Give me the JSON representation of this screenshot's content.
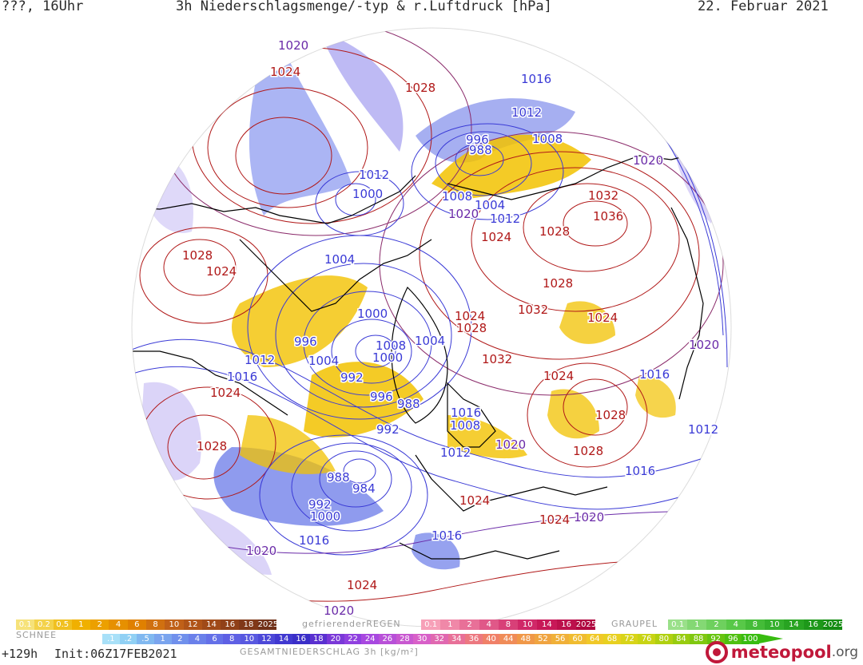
{
  "header": {
    "left": "???, 16Uhr",
    "title": "3h Niederschlagsmenge/-typ & r.Luftdruck [hPa]",
    "date": "22. Februar 2021"
  },
  "colors": {
    "high_isobar": "#b01818",
    "low_isobar": "#3a3ad6",
    "mid_isobar": "#6a2aa8",
    "coast": "#000000",
    "snow": "#f2c200",
    "rain": "#5a6ae8",
    "mixed": "#a080e0"
  },
  "pressure_labels": [
    {
      "text": "1020",
      "kind": "mid"
    },
    {
      "text": "1024",
      "kind": "high"
    },
    {
      "text": "1028",
      "kind": "high"
    },
    {
      "text": "1016",
      "kind": "low"
    },
    {
      "text": "1012",
      "kind": "low"
    },
    {
      "text": "996",
      "kind": "low"
    },
    {
      "text": "988",
      "kind": "low"
    },
    {
      "text": "1008",
      "kind": "low"
    },
    {
      "text": "1020",
      "kind": "mid"
    },
    {
      "text": "1012",
      "kind": "low"
    },
    {
      "text": "1000",
      "kind": "low"
    },
    {
      "text": "1008",
      "kind": "low"
    },
    {
      "text": "1004",
      "kind": "low"
    },
    {
      "text": "1020",
      "kind": "mid"
    },
    {
      "text": "1032",
      "kind": "high"
    },
    {
      "text": "1012",
      "kind": "low"
    },
    {
      "text": "1036",
      "kind": "high"
    },
    {
      "text": "1024",
      "kind": "high"
    },
    {
      "text": "1028",
      "kind": "high"
    },
    {
      "text": "1028",
      "kind": "high"
    },
    {
      "text": "1024",
      "kind": "high"
    },
    {
      "text": "1004",
      "kind": "low"
    },
    {
      "text": "1028",
      "kind": "high"
    },
    {
      "text": "1032",
      "kind": "high"
    },
    {
      "text": "1000",
      "kind": "low"
    },
    {
      "text": "1024",
      "kind": "high"
    },
    {
      "text": "1028",
      "kind": "high"
    },
    {
      "text": "1024",
      "kind": "high"
    },
    {
      "text": "996",
      "kind": "low"
    },
    {
      "text": "1008",
      "kind": "low"
    },
    {
      "text": "1004",
      "kind": "low"
    },
    {
      "text": "1020",
      "kind": "mid"
    },
    {
      "text": "1012",
      "kind": "low"
    },
    {
      "text": "1004",
      "kind": "low"
    },
    {
      "text": "1000",
      "kind": "low"
    },
    {
      "text": "1032",
      "kind": "high"
    },
    {
      "text": "1016",
      "kind": "low"
    },
    {
      "text": "992",
      "kind": "low"
    },
    {
      "text": "1024",
      "kind": "high"
    },
    {
      "text": "1016",
      "kind": "low"
    },
    {
      "text": "1024",
      "kind": "high"
    },
    {
      "text": "996",
      "kind": "low"
    },
    {
      "text": "988",
      "kind": "low"
    },
    {
      "text": "1016",
      "kind": "low"
    },
    {
      "text": "1028",
      "kind": "high"
    },
    {
      "text": "1028",
      "kind": "high"
    },
    {
      "text": "992",
      "kind": "low"
    },
    {
      "text": "1008",
      "kind": "low"
    },
    {
      "text": "1020",
      "kind": "mid"
    },
    {
      "text": "1012",
      "kind": "low"
    },
    {
      "text": "1012",
      "kind": "low"
    },
    {
      "text": "1028",
      "kind": "high"
    },
    {
      "text": "1016",
      "kind": "low"
    },
    {
      "text": "988",
      "kind": "low"
    },
    {
      "text": "984",
      "kind": "low"
    },
    {
      "text": "992",
      "kind": "low"
    },
    {
      "text": "1000",
      "kind": "low"
    },
    {
      "text": "1024",
      "kind": "high"
    },
    {
      "text": "1024",
      "kind": "high"
    },
    {
      "text": "1020",
      "kind": "mid"
    },
    {
      "text": "1016",
      "kind": "low"
    },
    {
      "text": "1016",
      "kind": "low"
    },
    {
      "text": "1020",
      "kind": "mid"
    },
    {
      "text": "1024",
      "kind": "high"
    },
    {
      "text": "1020",
      "kind": "mid"
    }
  ],
  "legend": {
    "snow": {
      "label": "SCHNEE",
      "items": [
        "0.1",
        "0.2",
        "0.5",
        "1",
        "2",
        "4",
        "6",
        "8",
        "10",
        "12",
        "14",
        "16",
        "18",
        "2025+"
      ],
      "colors": [
        "#f6e27a",
        "#f3d24a",
        "#f0c020",
        "#f0b000",
        "#eca000",
        "#e69000",
        "#e08000",
        "#d07010",
        "#c06018",
        "#b05418",
        "#a04a18",
        "#904018",
        "#803818",
        "#703018"
      ]
    },
    "freezing_rain": {
      "label": "gefrierenderREGEN",
      "items": [
        "0.1",
        "1",
        "2",
        "4",
        "8",
        "10",
        "14",
        "16",
        "2025+"
      ],
      "colors": [
        "#f7a0b8",
        "#f088a8",
        "#e87098",
        "#e05888",
        "#d84078",
        "#d02868",
        "#c81858",
        "#bc104c",
        "#b00840"
      ]
    },
    "graupel": {
      "label": "GRAUPEL",
      "items": [
        "0.1",
        "1",
        "2",
        "4",
        "8",
        "10",
        "14",
        "16",
        "2025+"
      ],
      "colors": [
        "#9ae08a",
        "#84d874",
        "#6ed05e",
        "#58c848",
        "#44bc38",
        "#34b02c",
        "#28a422",
        "#1e981a",
        "#148c12"
      ]
    },
    "total": {
      "label": "GESAMTNIEDERSCHLAG 3h [kg/m²]",
      "items": [
        ".1",
        ".2",
        ".5",
        "1",
        "2",
        "4",
        "6",
        "8",
        "10",
        "12",
        "14",
        "16",
        "18",
        "20",
        "22",
        "24",
        "26",
        "28",
        "30",
        "32",
        "34",
        "36",
        "40",
        "44",
        "48",
        "52",
        "56",
        "60",
        "64",
        "68",
        "72",
        "76",
        "80",
        "84",
        "88",
        "92",
        "96",
        "100"
      ],
      "colors": [
        "#a8e0f8",
        "#90d0f4",
        "#80b8f0",
        "#7aa4ee",
        "#7090ec",
        "#6a80ea",
        "#6470e8",
        "#5e60e4",
        "#5858e0",
        "#4c48d8",
        "#4038d0",
        "#3a2ec8",
        "#5a30d0",
        "#7a38d8",
        "#9040e0",
        "#a848e0",
        "#b850d8",
        "#c858d0",
        "#d860c8",
        "#e068b0",
        "#e87098",
        "#ec7880",
        "#f08068",
        "#f08c58",
        "#f09848",
        "#f0a440",
        "#f0b038",
        "#f0bc30",
        "#f0c828",
        "#e8d020",
        "#d8d418",
        "#c8d414",
        "#b0d010",
        "#98cc10",
        "#80c810",
        "#68c410",
        "#50c010",
        "#38bc10"
      ]
    }
  },
  "footer": {
    "lead": "+129h",
    "init": "Init:06Z17FEB2021"
  },
  "logo": {
    "name": "meteopool",
    "tld": ".org"
  }
}
